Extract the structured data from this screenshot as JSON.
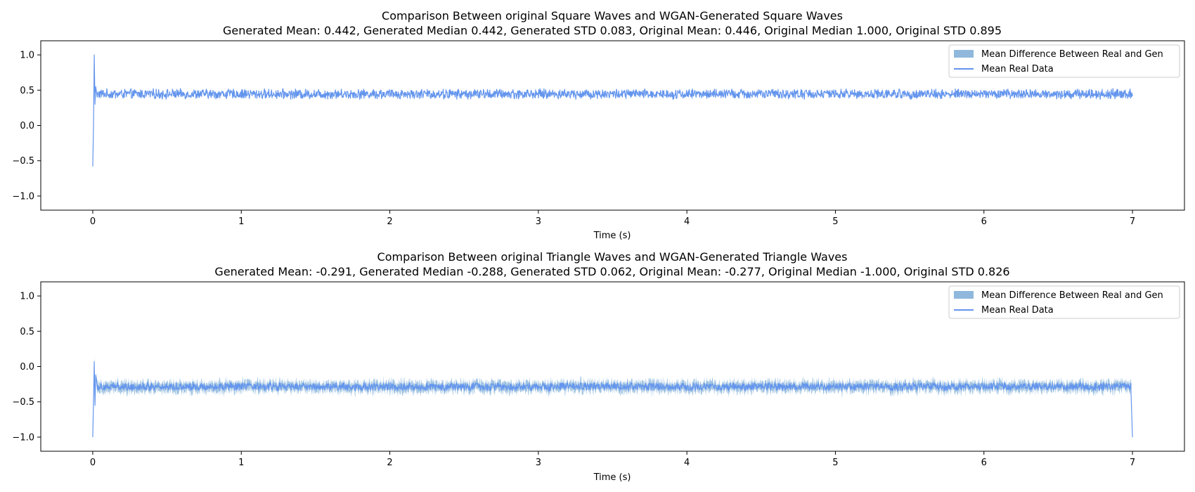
{
  "chart_data": [
    {
      "type": "line",
      "title": "Comparison Between original Square Waves and WGAN-Generated Square Waves",
      "subtitle": "Generated Mean: 0.442, Generated Median 0.442, Generated STD 0.083, Original Mean: 0.446, Original Median 1.000, Original STD 0.895",
      "xlabel": "Time (s)",
      "ylabel": "",
      "xlim": [
        -0.35,
        7.35
      ],
      "ylim": [
        -1.2,
        1.2
      ],
      "xticks": [
        "0",
        "1",
        "2",
        "3",
        "4",
        "5",
        "6",
        "7"
      ],
      "yticks": [
        "1.0",
        "0.5",
        "0.0",
        "−0.5",
        "−1.0"
      ],
      "grid": false,
      "legend_position": "top-right",
      "legend": [
        "Mean Difference Between Real and Gen",
        "Mean Real Data"
      ],
      "series": [
        {
          "name": "Mean Real Data",
          "color": "#6495ED",
          "start": [
            [
              0,
              -0.58
            ],
            [
              0.005,
              0.0
            ],
            [
              0.01,
              1.0
            ],
            [
              0.015,
              0.3
            ],
            [
              0.02,
              0.55
            ],
            [
              0.03,
              0.4
            ]
          ],
          "baseline": 0.446,
          "noise_amplitude": 0.06,
          "x_end": 7.0
        },
        {
          "name": "Mean Difference Between Real and Gen",
          "color": "#8fb8dc",
          "band_halfwidth": 0.0
        }
      ]
    },
    {
      "type": "line",
      "title": "Comparison Between original Triangle Waves and WGAN-Generated Triangle Waves",
      "subtitle": "Generated Mean: -0.291, Generated Median -0.288, Generated STD 0.062, Original Mean: -0.277, Original Median -1.000, Original STD 0.826",
      "xlabel": "Time (s)",
      "ylabel": "",
      "xlim": [
        -0.35,
        7.35
      ],
      "ylim": [
        -1.2,
        1.2
      ],
      "xticks": [
        "0",
        "1",
        "2",
        "3",
        "4",
        "5",
        "6",
        "7"
      ],
      "yticks": [
        "1.0",
        "0.5",
        "0.0",
        "−0.5",
        "−1.0"
      ],
      "grid": false,
      "legend_position": "top-right",
      "legend": [
        "Mean Difference Between Real and Gen",
        "Mean Real Data"
      ],
      "series": [
        {
          "name": "Mean Real Data",
          "color": "#6495ED",
          "start": [
            [
              0,
              -1.0
            ],
            [
              0.005,
              -0.5
            ],
            [
              0.01,
              0.07
            ],
            [
              0.015,
              -0.55
            ],
            [
              0.02,
              -0.12
            ],
            [
              0.03,
              -0.28
            ]
          ],
          "end": [
            [
              6.99,
              -0.35
            ],
            [
              7.0,
              -1.0
            ]
          ],
          "baseline": -0.285,
          "noise_amplitude": 0.05,
          "x_end": 7.0
        },
        {
          "name": "Mean Difference Between Real and Gen",
          "color": "#8fb8dc",
          "band_halfwidth": 0.08
        }
      ]
    }
  ]
}
